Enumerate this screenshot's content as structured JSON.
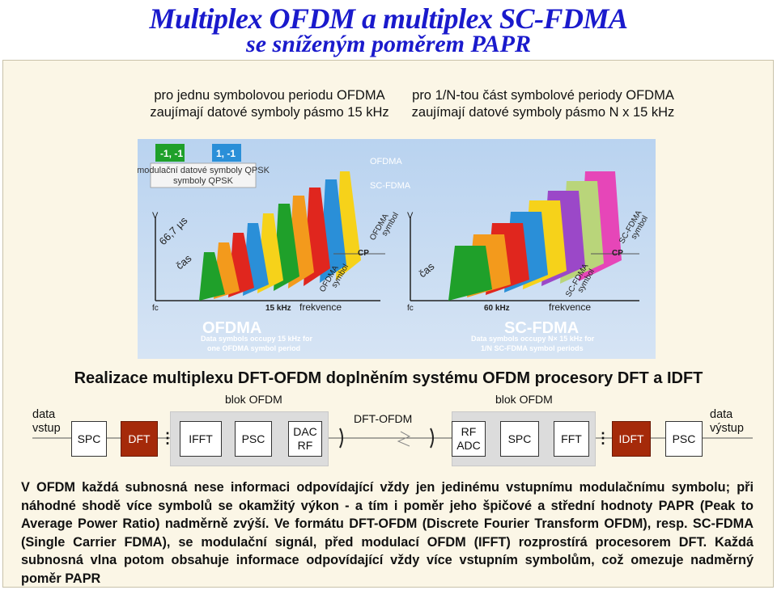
{
  "title": "Multiplex OFDM a multiplex SC-FDMA",
  "subtitle": "se sníženým poměrem PAPR",
  "captions": {
    "left": "pro jednu symbolovou periodu OFDMA zaujímají datové symboly pásmo 15 kHz",
    "right": "pro 1/N-tou část symbolové periody OFDMA zaujímají datové symboly pásmo N x 15 kHz"
  },
  "figure": {
    "legend": {
      "neg": "-1, -1",
      "pos": "1, -1",
      "desc": "modulační datové symboly QPSK",
      "ofdma": "OFDMA",
      "scfdma": "SC-FDMA"
    },
    "left": {
      "v_axis": "V",
      "period": "66,7 µs",
      "time_axis": "čas",
      "symbol_top": "OFDMA symbol",
      "symbol_bottom": "OFDMA symbol",
      "cp": "CP",
      "fc": "fc",
      "bandwidth": "15 kHz",
      "freq_axis": "frekvence",
      "name": "OFDMA",
      "note": "Data symbols occupy 15 kHz for one OFDMA symbol period"
    },
    "right": {
      "v_axis": "V",
      "time_axis": "čas",
      "symbol_top": "SC-FDMA symbol",
      "symbol_bottom": "SC-FDMA symbol",
      "cp": "CP",
      "fc": "fc",
      "bandwidth": "60 kHz",
      "freq_axis": "frekvence",
      "name": "SC-FDMA",
      "note": "Data symbols occupy N× 15 kHz for 1/N SC-FDMA symbol periods"
    },
    "colors": {
      "green": "#1fa02a",
      "orange": "#f39a1c",
      "red": "#e0261e",
      "blue": "#2a8fd8",
      "yellow": "#f6d21a",
      "violet": "#9b48c8",
      "lightgreen": "#b9d57a",
      "magenta": "#e646b8"
    }
  },
  "block_diagram": {
    "heading": "Realizace multiplexu DFT-OFDM doplněním systému OFDM procesory DFT a IDFT",
    "blok_ofdm_left": "blok OFDM",
    "blok_ofdm_right": "blok OFDM",
    "input": "data vstup",
    "output": "data výstup",
    "channel": "DFT-OFDM",
    "tx": {
      "spc": "SPC",
      "dft": "DFT",
      "ifft": "IFFT",
      "psc": "PSC",
      "dac": "DAC RF"
    },
    "rx": {
      "rf": "RF ADC",
      "spc": "SPC",
      "fft": "FFT",
      "idft": "IDFT",
      "psc": "PSC"
    },
    "accent_color": "#a52a0a"
  },
  "paragraph": "V OFDM každá subnosná nese informaci odpovídající vždy jen jedinému vstupnímu modulačnímu symbolu; při náhodné shodě více symbolů se okamžitý výkon - a tím i poměr jeho špičové a střední hodnoty PAPR (Peak to Average Power Ratio) nadměrně zvýší. Ve formátu DFT-OFDM (Discrete Fourier Transform OFDM), resp. SC-FDMA (Single Carrier FDMA), se modulační signál, před modulací OFDM (IFFT) rozprostírá procesorem DFT. Každá subnosná vlna potom obsahuje informace odpovídající vždy více vstupním symbolům, což omezuje nadměrný poměr PAPR"
}
